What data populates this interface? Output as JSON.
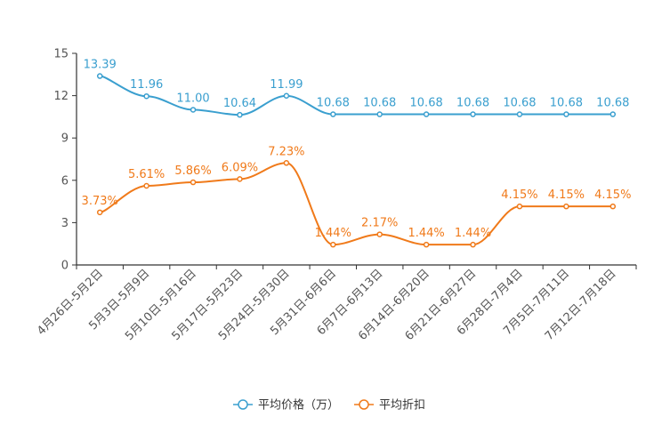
{
  "chart_data": {
    "type": "line",
    "title": "",
    "xlabel": "",
    "ylabel": "",
    "ylim": [
      0,
      15
    ],
    "yticks": [
      0,
      3,
      6,
      9,
      12,
      15
    ],
    "grid": false,
    "legend_position": "bottom",
    "categories": [
      "4月26日-5月2日",
      "5月3日-5月9日",
      "5月10日-5月16日",
      "5月17日-5月23日",
      "5月24日-5月30日",
      "5月31日-6月6日",
      "6月7日-6月13日",
      "6月14日-6月20日",
      "6月21日-6月27日",
      "6月28日-7月4日",
      "7月5日-7月11日",
      "7月12日-7月18日"
    ],
    "series": [
      {
        "name": "平均价格（万）",
        "color": "#3a9fcf",
        "values": [
          13.39,
          11.96,
          11.0,
          10.64,
          11.99,
          10.68,
          10.68,
          10.68,
          10.68,
          10.68,
          10.68,
          10.68
        ],
        "labels": [
          "13.39",
          "11.96",
          "11.00",
          "10.64",
          "11.99",
          "10.68",
          "10.68",
          "10.68",
          "10.68",
          "10.68",
          "10.68",
          "10.68"
        ]
      },
      {
        "name": "平均折扣",
        "color": "#f07a1a",
        "values": [
          3.73,
          5.61,
          5.86,
          6.09,
          7.23,
          1.44,
          2.17,
          1.44,
          1.44,
          4.15,
          4.15,
          4.15
        ],
        "labels": [
          "3.73%",
          "5.61%",
          "5.86%",
          "6.09%",
          "7.23%",
          "1.44%",
          "2.17%",
          "1.44%",
          "1.44%",
          "4.15%",
          "4.15%",
          "4.15%"
        ]
      }
    ]
  }
}
